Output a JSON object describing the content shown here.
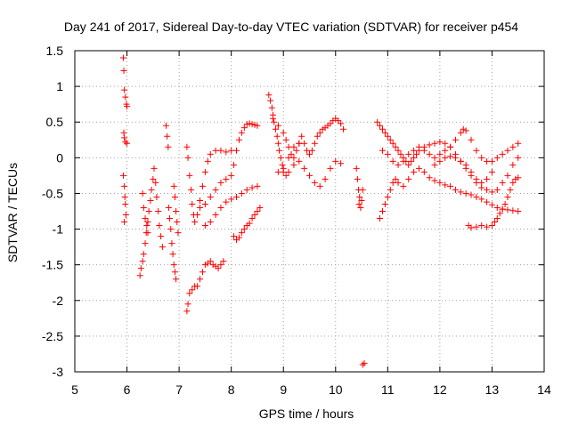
{
  "chart_data": {
    "type": "scatter",
    "title": "Day 241 of 2017, Sidereal Day-to-day VTEC variation (SDTVAR) for receiver p454",
    "xlabel": "GPS time / hours",
    "ylabel": "SDTVAR / TECUs",
    "xlim": [
      5,
      14
    ],
    "ylim": [
      -3,
      1.5
    ],
    "grid": true,
    "marker": "+",
    "xticks": [
      "5",
      "6",
      "7",
      "8",
      "9",
      "10",
      "11",
      "12",
      "13",
      "14"
    ],
    "yticks": [
      "1.5",
      "1",
      "0.5",
      "0",
      "-0.5",
      "-1",
      "-1.5",
      "-2",
      "-2.5",
      "-3"
    ],
    "series": [
      {
        "name": "p454",
        "color": "#ff0000",
        "points": [
          [
            5.93,
            1.4
          ],
          [
            5.94,
            1.22
          ],
          [
            5.95,
            0.95
          ],
          [
            5.97,
            0.85
          ],
          [
            5.99,
            0.75
          ],
          [
            6.0,
            0.72
          ],
          [
            5.94,
            0.35
          ],
          [
            5.95,
            0.28
          ],
          [
            5.97,
            0.22
          ],
          [
            6.0,
            0.2
          ],
          [
            5.93,
            -0.25
          ],
          [
            5.95,
            -0.4
          ],
          [
            5.96,
            -0.55
          ],
          [
            5.97,
            -0.65
          ],
          [
            5.98,
            -0.8
          ],
          [
            5.95,
            -0.9
          ],
          [
            6.25,
            -1.65
          ],
          [
            6.27,
            -1.55
          ],
          [
            6.3,
            -1.45
          ],
          [
            6.32,
            -1.35
          ],
          [
            6.35,
            -1.2
          ],
          [
            6.37,
            -1.05
          ],
          [
            6.4,
            -0.9
          ],
          [
            6.42,
            -0.75
          ],
          [
            6.45,
            -0.6
          ],
          [
            6.47,
            -0.45
          ],
          [
            6.5,
            -0.3
          ],
          [
            6.52,
            -0.15
          ],
          [
            6.55,
            -0.35
          ],
          [
            6.57,
            -0.55
          ],
          [
            6.6,
            -0.75
          ],
          [
            6.62,
            -0.95
          ],
          [
            6.65,
            -1.1
          ],
          [
            6.68,
            -1.25
          ],
          [
            6.3,
            -0.5
          ],
          [
            6.32,
            -0.7
          ],
          [
            6.35,
            -0.85
          ],
          [
            6.38,
            -0.95
          ],
          [
            6.4,
            -1.05
          ],
          [
            6.75,
            0.45
          ],
          [
            6.77,
            0.3
          ],
          [
            6.79,
            0.15
          ],
          [
            6.8,
            -0.7
          ],
          [
            6.82,
            -0.85
          ],
          [
            6.84,
            -1.0
          ],
          [
            6.86,
            -1.2
          ],
          [
            6.88,
            -1.35
          ],
          [
            6.9,
            -1.5
          ],
          [
            6.92,
            -1.6
          ],
          [
            6.94,
            -1.7
          ],
          [
            6.9,
            -0.4
          ],
          [
            6.92,
            -0.55
          ],
          [
            6.94,
            -0.75
          ],
          [
            6.96,
            -0.9
          ],
          [
            6.98,
            -1.05
          ],
          [
            7.15,
            -2.15
          ],
          [
            7.17,
            -2.05
          ],
          [
            7.2,
            -1.9
          ],
          [
            7.25,
            -1.85
          ],
          [
            7.3,
            -1.8
          ],
          [
            7.35,
            -1.8
          ],
          [
            7.4,
            -1.7
          ],
          [
            7.45,
            -1.6
          ],
          [
            7.5,
            -1.5
          ],
          [
            7.55,
            -1.48
          ],
          [
            7.6,
            -1.45
          ],
          [
            7.65,
            -1.5
          ],
          [
            7.7,
            -1.52
          ],
          [
            7.75,
            -1.55
          ],
          [
            7.8,
            -1.5
          ],
          [
            7.85,
            -1.45
          ],
          [
            7.15,
            0.15
          ],
          [
            7.17,
            0.0
          ],
          [
            7.2,
            -0.25
          ],
          [
            7.23,
            -0.45
          ],
          [
            7.25,
            -0.65
          ],
          [
            7.28,
            -0.8
          ],
          [
            7.3,
            -0.9
          ],
          [
            7.35,
            -0.8
          ],
          [
            7.4,
            -0.6
          ],
          [
            7.45,
            -0.4
          ],
          [
            7.5,
            -0.2
          ],
          [
            7.55,
            -0.05
          ],
          [
            7.6,
            0.05
          ],
          [
            7.7,
            0.1
          ],
          [
            7.8,
            0.1
          ],
          [
            7.9,
            0.08
          ],
          [
            8.0,
            0.1
          ],
          [
            7.4,
            -0.7
          ],
          [
            7.5,
            -0.65
          ],
          [
            7.6,
            -0.55
          ],
          [
            7.7,
            -0.45
          ],
          [
            7.8,
            -0.35
          ],
          [
            7.9,
            -0.3
          ],
          [
            8.0,
            -0.25
          ],
          [
            8.05,
            -0.1
          ],
          [
            8.1,
            0.1
          ],
          [
            8.15,
            0.25
          ],
          [
            8.2,
            0.35
          ],
          [
            8.25,
            0.42
          ],
          [
            8.3,
            0.47
          ],
          [
            8.35,
            0.48
          ],
          [
            8.4,
            0.47
          ],
          [
            8.45,
            0.46
          ],
          [
            8.5,
            0.45
          ],
          [
            7.5,
            -0.95
          ],
          [
            7.6,
            -0.9
          ],
          [
            7.7,
            -0.8
          ],
          [
            7.8,
            -0.7
          ],
          [
            7.9,
            -0.62
          ],
          [
            8.0,
            -0.58
          ],
          [
            8.1,
            -0.55
          ],
          [
            8.2,
            -0.5
          ],
          [
            8.3,
            -0.45
          ],
          [
            8.4,
            -0.42
          ],
          [
            8.5,
            -0.4
          ],
          [
            8.05,
            -1.1
          ],
          [
            8.1,
            -1.15
          ],
          [
            8.15,
            -1.12
          ],
          [
            8.2,
            -1.05
          ],
          [
            8.25,
            -1.0
          ],
          [
            8.3,
            -0.95
          ],
          [
            8.35,
            -0.92
          ],
          [
            8.4,
            -0.85
          ],
          [
            8.45,
            -0.8
          ],
          [
            8.5,
            -0.75
          ],
          [
            8.55,
            -0.7
          ],
          [
            8.72,
            0.88
          ],
          [
            8.75,
            0.8
          ],
          [
            8.78,
            0.7
          ],
          [
            8.8,
            0.6
          ],
          [
            8.82,
            0.5
          ],
          [
            8.85,
            0.4
          ],
          [
            8.88,
            0.3
          ],
          [
            8.9,
            0.2
          ],
          [
            8.92,
            0.1
          ],
          [
            8.95,
            0.0
          ],
          [
            8.98,
            -0.1
          ],
          [
            9.0,
            -0.2
          ],
          [
            9.05,
            -0.25
          ],
          [
            9.1,
            -0.2
          ],
          [
            9.2,
            -0.1
          ],
          [
            9.3,
            -0.05
          ],
          [
            9.4,
            -0.15
          ],
          [
            9.5,
            -0.25
          ],
          [
            9.6,
            -0.35
          ],
          [
            9.7,
            -0.4
          ],
          [
            9.8,
            -0.3
          ],
          [
            9.9,
            -0.15
          ],
          [
            10.0,
            -0.05
          ],
          [
            10.1,
            -0.08
          ],
          [
            8.8,
            0.55
          ],
          [
            8.9,
            0.45
          ],
          [
            9.0,
            0.35
          ],
          [
            9.05,
            0.25
          ],
          [
            9.1,
            0.15
          ],
          [
            9.15,
            0.05
          ],
          [
            9.2,
            0.0
          ],
          [
            9.25,
            0.1
          ],
          [
            9.3,
            0.2
          ],
          [
            9.35,
            0.3
          ],
          [
            9.4,
            0.2
          ],
          [
            9.45,
            0.1
          ],
          [
            9.5,
            0.05
          ],
          [
            9.55,
            0.1
          ],
          [
            9.6,
            0.2
          ],
          [
            9.65,
            0.3
          ],
          [
            9.7,
            0.35
          ],
          [
            9.75,
            0.4
          ],
          [
            9.8,
            0.42
          ],
          [
            9.85,
            0.45
          ],
          [
            9.9,
            0.48
          ],
          [
            9.95,
            0.52
          ],
          [
            10.0,
            0.55
          ],
          [
            10.05,
            0.52
          ],
          [
            10.1,
            0.48
          ],
          [
            10.15,
            0.4
          ],
          [
            8.9,
            -0.2
          ],
          [
            9.0,
            -0.15
          ],
          [
            9.1,
            0.0
          ],
          [
            9.2,
            0.15
          ],
          [
            9.3,
            0.2
          ],
          [
            10.4,
            -0.15
          ],
          [
            10.42,
            -0.3
          ],
          [
            10.44,
            -0.45
          ],
          [
            10.46,
            -0.55
          ],
          [
            10.48,
            -0.7
          ],
          [
            10.5,
            -0.6
          ],
          [
            10.52,
            -0.45
          ],
          [
            10.45,
            -0.65
          ],
          [
            10.52,
            -2.9
          ],
          [
            10.55,
            -2.88
          ],
          [
            10.8,
            0.5
          ],
          [
            10.85,
            0.45
          ],
          [
            10.9,
            0.4
          ],
          [
            10.95,
            0.35
          ],
          [
            11.0,
            0.3
          ],
          [
            11.05,
            0.25
          ],
          [
            11.1,
            0.2
          ],
          [
            11.15,
            0.15
          ],
          [
            11.2,
            0.1
          ],
          [
            11.25,
            0.05
          ],
          [
            11.3,
            0.0
          ],
          [
            11.35,
            -0.05
          ],
          [
            11.4,
            -0.1
          ],
          [
            11.45,
            -0.05
          ],
          [
            11.5,
            0.0
          ],
          [
            11.55,
            0.05
          ],
          [
            11.6,
            0.1
          ],
          [
            11.7,
            0.15
          ],
          [
            11.8,
            0.18
          ],
          [
            11.9,
            0.2
          ],
          [
            12.0,
            0.22
          ],
          [
            12.1,
            0.2
          ],
          [
            12.2,
            0.15
          ],
          [
            12.3,
            0.05
          ],
          [
            12.4,
            -0.05
          ],
          [
            12.5,
            -0.15
          ],
          [
            12.6,
            -0.25
          ],
          [
            12.7,
            -0.35
          ],
          [
            12.8,
            -0.42
          ],
          [
            12.9,
            -0.45
          ],
          [
            13.0,
            -0.48
          ],
          [
            13.1,
            -0.45
          ],
          [
            13.2,
            -0.35
          ],
          [
            13.3,
            -0.25
          ],
          [
            13.4,
            -0.1
          ],
          [
            13.5,
            0.0
          ],
          [
            10.85,
            -0.85
          ],
          [
            10.9,
            -0.75
          ],
          [
            10.95,
            -0.65
          ],
          [
            11.0,
            -0.55
          ],
          [
            11.05,
            -0.45
          ],
          [
            11.1,
            -0.35
          ],
          [
            11.15,
            -0.3
          ],
          [
            11.2,
            -0.35
          ],
          [
            11.3,
            -0.4
          ],
          [
            11.4,
            -0.3
          ],
          [
            11.5,
            -0.2
          ],
          [
            11.6,
            -0.15
          ],
          [
            11.7,
            -0.2
          ],
          [
            11.8,
            -0.28
          ],
          [
            11.9,
            -0.32
          ],
          [
            12.0,
            -0.35
          ],
          [
            12.1,
            -0.38
          ],
          [
            12.2,
            -0.4
          ],
          [
            12.3,
            -0.45
          ],
          [
            12.4,
            -0.48
          ],
          [
            12.5,
            -0.5
          ],
          [
            12.6,
            -0.52
          ],
          [
            12.7,
            -0.55
          ],
          [
            12.8,
            -0.58
          ],
          [
            12.9,
            -0.62
          ],
          [
            13.0,
            -0.66
          ],
          [
            13.1,
            -0.7
          ],
          [
            13.2,
            -0.72
          ],
          [
            13.3,
            -0.73
          ],
          [
            13.4,
            -0.74
          ],
          [
            13.5,
            -0.75
          ],
          [
            10.9,
            0.1
          ],
          [
            11.0,
            0.05
          ],
          [
            11.1,
            -0.05
          ],
          [
            11.2,
            -0.1
          ],
          [
            11.3,
            -0.05
          ],
          [
            11.4,
            0.05
          ],
          [
            11.5,
            0.1
          ],
          [
            11.6,
            0.15
          ],
          [
            11.7,
            0.1
          ],
          [
            11.8,
            0.05
          ],
          [
            11.9,
            0.0
          ],
          [
            12.0,
            0.05
          ],
          [
            12.1,
            0.1
          ],
          [
            12.2,
            0.15
          ],
          [
            12.3,
            0.25
          ],
          [
            12.4,
            0.35
          ],
          [
            12.45,
            0.4
          ],
          [
            12.5,
            0.38
          ],
          [
            12.6,
            0.25
          ],
          [
            12.7,
            0.1
          ],
          [
            12.8,
            0.0
          ],
          [
            12.9,
            -0.05
          ],
          [
            13.0,
            -0.05
          ],
          [
            13.1,
            0.0
          ],
          [
            13.2,
            0.05
          ],
          [
            13.3,
            0.1
          ],
          [
            13.4,
            0.15
          ],
          [
            13.5,
            0.2
          ],
          [
            12.55,
            -0.95
          ],
          [
            12.6,
            -0.98
          ],
          [
            12.7,
            -0.97
          ],
          [
            12.8,
            -0.95
          ],
          [
            12.9,
            -0.97
          ],
          [
            13.0,
            -0.95
          ],
          [
            13.05,
            -0.9
          ],
          [
            13.1,
            -0.85
          ],
          [
            13.15,
            -0.78
          ],
          [
            13.2,
            -0.72
          ],
          [
            13.25,
            -0.65
          ],
          [
            13.3,
            -0.55
          ],
          [
            13.35,
            -0.45
          ],
          [
            13.4,
            -0.35
          ],
          [
            13.45,
            -0.3
          ],
          [
            13.5,
            -0.28
          ],
          [
            11.9,
            -0.1
          ],
          [
            12.0,
            -0.05
          ],
          [
            12.1,
            0.0
          ],
          [
            12.2,
            0.02
          ],
          [
            12.3,
            0.0
          ],
          [
            12.4,
            -0.05
          ],
          [
            12.5,
            -0.1
          ],
          [
            12.6,
            -0.2
          ],
          [
            12.7,
            -0.3
          ],
          [
            12.8,
            -0.35
          ],
          [
            12.9,
            -0.3
          ],
          [
            13.0,
            -0.2
          ]
        ]
      }
    ]
  }
}
